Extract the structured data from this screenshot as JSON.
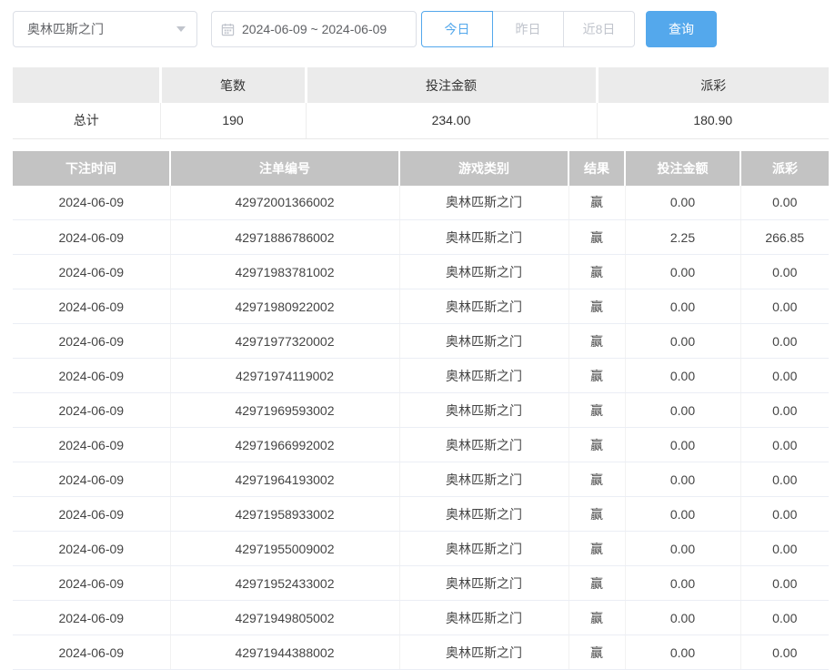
{
  "toolbar": {
    "game_select": {
      "value": "奥林匹斯之门"
    },
    "date_range": {
      "value": "2024-06-09 ~ 2024-06-09"
    },
    "quick_buttons": [
      {
        "label": "今日",
        "active": true
      },
      {
        "label": "昨日",
        "active": false
      },
      {
        "label": "近8日",
        "active": false
      }
    ],
    "query_label": "查询"
  },
  "summary": {
    "headers": [
      "",
      "笔数",
      "投注金额",
      "派彩"
    ],
    "total_label": "总计",
    "count": "190",
    "bet_amount": "234.00",
    "payout": "180.90"
  },
  "table": {
    "headers": [
      "下注时间",
      "注单编号",
      "游戏类别",
      "结果",
      "投注金额",
      "派彩"
    ],
    "rows": [
      [
        "2024-06-09",
        "42972001366002",
        "奥林匹斯之门",
        "赢",
        "0.00",
        "0.00"
      ],
      [
        "2024-06-09",
        "42971886786002",
        "奥林匹斯之门",
        "赢",
        "2.25",
        "266.85"
      ],
      [
        "2024-06-09",
        "42971983781002",
        "奥林匹斯之门",
        "赢",
        "0.00",
        "0.00"
      ],
      [
        "2024-06-09",
        "42971980922002",
        "奥林匹斯之门",
        "赢",
        "0.00",
        "0.00"
      ],
      [
        "2024-06-09",
        "42971977320002",
        "奥林匹斯之门",
        "赢",
        "0.00",
        "0.00"
      ],
      [
        "2024-06-09",
        "42971974119002",
        "奥林匹斯之门",
        "赢",
        "0.00",
        "0.00"
      ],
      [
        "2024-06-09",
        "42971969593002",
        "奥林匹斯之门",
        "赢",
        "0.00",
        "0.00"
      ],
      [
        "2024-06-09",
        "42971966992002",
        "奥林匹斯之门",
        "赢",
        "0.00",
        "0.00"
      ],
      [
        "2024-06-09",
        "42971964193002",
        "奥林匹斯之门",
        "赢",
        "0.00",
        "0.00"
      ],
      [
        "2024-06-09",
        "42971958933002",
        "奥林匹斯之门",
        "赢",
        "0.00",
        "0.00"
      ],
      [
        "2024-06-09",
        "42971955009002",
        "奥林匹斯之门",
        "赢",
        "0.00",
        "0.00"
      ],
      [
        "2024-06-09",
        "42971952433002",
        "奥林匹斯之门",
        "赢",
        "0.00",
        "0.00"
      ],
      [
        "2024-06-09",
        "42971949805002",
        "奥林匹斯之门",
        "赢",
        "0.00",
        "0.00"
      ],
      [
        "2024-06-09",
        "42971944388002",
        "奥林匹斯之门",
        "赢",
        "0.00",
        "0.00"
      ]
    ]
  },
  "colors": {
    "accent_blue": "#54a8ec",
    "table_header_bg": "#c3c3c3",
    "summary_header_bg": "#ebebeb"
  }
}
